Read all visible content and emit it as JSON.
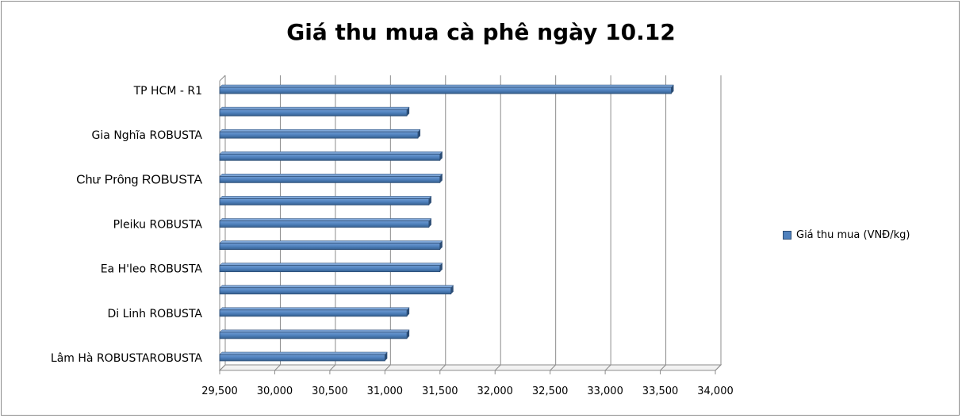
{
  "chart_data": {
    "type": "bar",
    "orientation": "horizontal",
    "title": "Giá thu mua cà phê ngày 10.12",
    "xlabel": "",
    "ylabel": "",
    "xlim": [
      29500,
      34000
    ],
    "x_ticks": [
      "29,500",
      "30,000",
      "30,500",
      "31,000",
      "31,500",
      "32,000",
      "32,500",
      "33,000",
      "33,500",
      "34,000"
    ],
    "categories": [
      "TP HCM - R1",
      "",
      "Gia Nghĩa  ROBUSTA",
      "",
      "Chư Prông  ROBUSTA",
      "",
      "Pleiku  ROBUSTA",
      "",
      "Ea H'leo  ROBUSTA",
      "",
      "Di Linh  ROBUSTA",
      "",
      "Lâm Hà ROBUSTAROBUSTA"
    ],
    "series": [
      {
        "name": "Giá thu mua (VNĐ/kg)",
        "color": "#4f81bd",
        "values": [
          33600,
          31200,
          31300,
          31500,
          31500,
          31400,
          31400,
          31500,
          31500,
          31600,
          31200,
          31200,
          31000
        ]
      }
    ],
    "grid": true,
    "legend_position": "right"
  }
}
